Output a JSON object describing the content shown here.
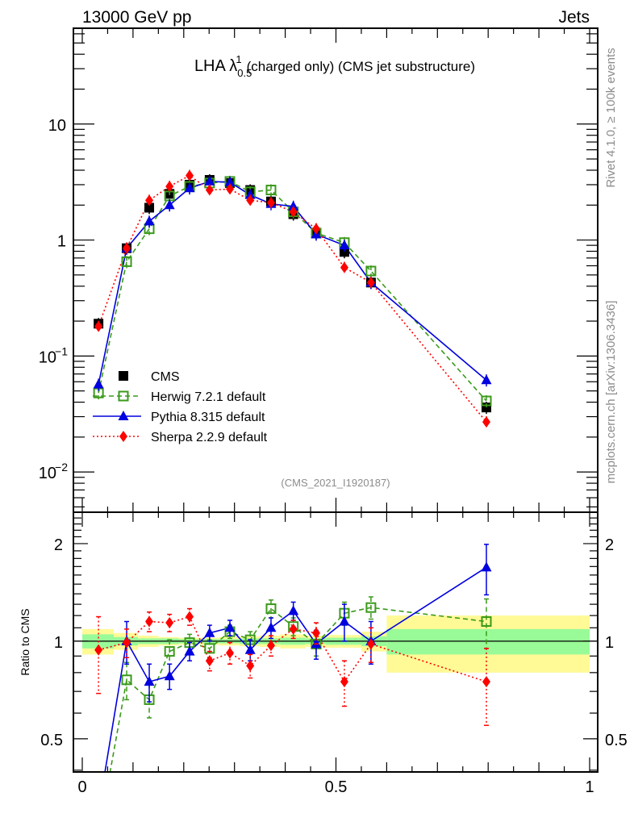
{
  "header": {
    "left": "13000 GeV pp",
    "right": "Jets"
  },
  "side_labels": {
    "rivet": "Rivet 4.1.0, ≥ 100k events",
    "mcplots": "mcplots.cern.ch [arXiv:1306.3436]"
  },
  "chart_data": [
    {
      "type": "line",
      "panel": "main",
      "title": "LHA λ",
      "title_sup": "1",
      "title_sub": "0.5",
      "title_rest": "(charged only) (CMS jet substructure)",
      "analysis_label": "(CMS_2021_I1920187)",
      "xlabel": "",
      "ylabel": "",
      "xlim": [
        0,
        1
      ],
      "ylim": [
        0.0045,
        67
      ],
      "yscale": "log",
      "yticks": [
        {
          "value": 10,
          "label": "10",
          "sup": ""
        },
        {
          "value": 1,
          "label": "1",
          "sup": ""
        },
        {
          "value": 0.1,
          "label": "10",
          "sup": "−1"
        },
        {
          "value": 0.01,
          "label": "10",
          "sup": "−2"
        }
      ],
      "legend_position": "bottom-left",
      "x": [
        0.032,
        0.0875,
        0.132,
        0.172,
        0.2115,
        0.251,
        0.291,
        0.331,
        0.372,
        0.416,
        0.461,
        0.5166,
        0.569,
        0.7965
      ],
      "series": [
        {
          "name": "CMS",
          "color": "#000000",
          "marker": "square-filled",
          "line": "none",
          "values": [
            0.19,
            0.85,
            1.9,
            2.5,
            3.0,
            3.3,
            3.1,
            2.7,
            2.15,
            1.67,
            1.15,
            0.79,
            0.43,
            0.036
          ]
        },
        {
          "name": "Herwig 7.2.1 default",
          "color": "#3a9a1a",
          "marker": "square-open",
          "line": "dashed",
          "values": [
            0.048,
            0.65,
            1.25,
            2.4,
            2.9,
            3.1,
            3.2,
            2.6,
            2.7,
            1.75,
            1.15,
            0.95,
            0.54,
            0.041
          ]
        },
        {
          "name": "Pythia 8.315 default",
          "color": "#0000e0",
          "marker": "triangle",
          "line": "solid",
          "values": [
            0.057,
            0.85,
            1.45,
            2.0,
            2.8,
            3.2,
            3.15,
            2.45,
            2.05,
            1.95,
            1.12,
            0.9,
            0.43,
            0.062
          ]
        },
        {
          "name": "Sherpa 2.2.9 default",
          "color": "#ff0000",
          "marker": "diamond",
          "line": "dotted",
          "values": [
            0.18,
            0.85,
            2.2,
            2.9,
            3.6,
            2.7,
            2.75,
            2.2,
            2.1,
            1.75,
            1.25,
            0.58,
            0.43,
            0.027
          ]
        }
      ]
    },
    {
      "type": "line",
      "panel": "ratio",
      "ylabel": "Ratio to CMS",
      "xlim": [
        0,
        1
      ],
      "ylim": [
        0.395,
        2.5
      ],
      "yscale": "log",
      "yticks": [
        {
          "value": 2,
          "label": "2"
        },
        {
          "value": 1,
          "label": "1"
        },
        {
          "value": 0.5,
          "label": "0.5"
        }
      ],
      "xticks": [
        {
          "value": 0,
          "label": "0"
        },
        {
          "value": 0.5,
          "label": "0.5"
        },
        {
          "value": 1,
          "label": "1"
        }
      ],
      "x": [
        0.032,
        0.0875,
        0.132,
        0.172,
        0.2115,
        0.251,
        0.291,
        0.331,
        0.372,
        0.416,
        0.461,
        0.5166,
        0.569,
        0.7965
      ],
      "bands": {
        "bin_edges": [
          0,
          0.062,
          0.11,
          0.15,
          0.19,
          0.23,
          0.27,
          0.31,
          0.35,
          0.39,
          0.44,
          0.48,
          0.55,
          0.6,
          1.0
        ],
        "inner": [
          0.05,
          0.03,
          0.02,
          0.02,
          0.015,
          0.015,
          0.015,
          0.02,
          0.02,
          0.025,
          0.02,
          0.025,
          0.035,
          0.09
        ],
        "outer": [
          0.09,
          0.06,
          0.04,
          0.03,
          0.025,
          0.025,
          0.03,
          0.035,
          0.04,
          0.05,
          0.04,
          0.045,
          0.07,
          0.2
        ],
        "inner_color": "#98fb98",
        "outer_color": "#fffa96"
      },
      "series": [
        {
          "name": "Herwig 7.2.1 default",
          "color": "#3a9a1a",
          "marker": "square-open",
          "line": "dashed",
          "values": [
            0.25,
            0.76,
            0.66,
            0.93,
            0.99,
            0.95,
            1.07,
            1.01,
            1.26,
            1.11,
            0.98,
            1.22,
            1.27,
            1.15
          ],
          "errors": [
            0.1,
            0.1,
            0.08,
            0.08,
            0.06,
            0.06,
            0.05,
            0.06,
            0.08,
            0.07,
            0.08,
            0.1,
            0.1,
            0.2
          ]
        },
        {
          "name": "Pythia 8.315 default",
          "color": "#0000e0",
          "marker": "triangle",
          "line": "solid",
          "values": [
            0.3,
            1.0,
            0.75,
            0.78,
            0.93,
            1.06,
            1.1,
            0.94,
            1.1,
            1.24,
            0.98,
            1.15,
            1.0,
            1.69
          ],
          "errors": [
            0.1,
            0.15,
            0.1,
            0.07,
            0.06,
            0.06,
            0.06,
            0.07,
            0.08,
            0.08,
            0.1,
            0.15,
            0.15,
            0.3
          ]
        },
        {
          "name": "Sherpa 2.2.9 default",
          "color": "#ff0000",
          "marker": "diamond",
          "line": "dotted",
          "values": [
            0.94,
            0.99,
            1.15,
            1.14,
            1.19,
            0.87,
            0.92,
            0.84,
            0.97,
            1.09,
            1.06,
            0.75,
            0.98,
            0.75
          ],
          "errors": [
            0.25,
            0.1,
            0.08,
            0.07,
            0.07,
            0.06,
            0.07,
            0.07,
            0.07,
            0.07,
            0.08,
            0.12,
            0.12,
            0.2
          ]
        }
      ]
    }
  ]
}
